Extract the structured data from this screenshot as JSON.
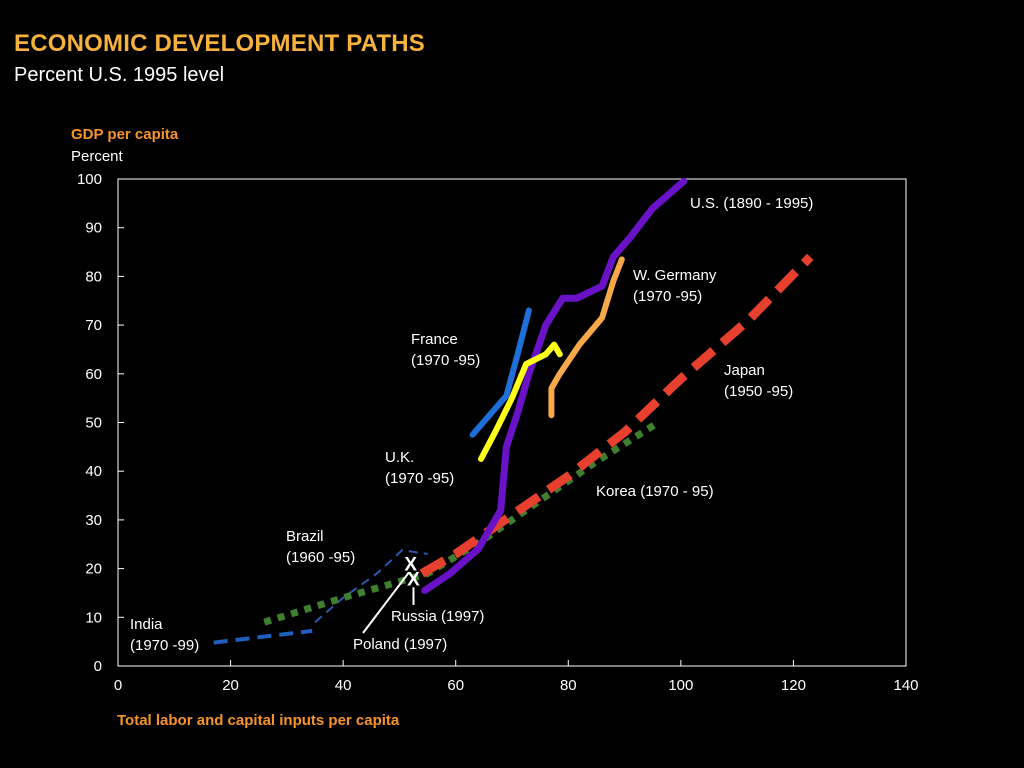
{
  "header": {
    "title": "ECONOMIC DEVELOPMENT PATHS",
    "subtitle": "Percent U.S. 1995 level"
  },
  "chart_data": {
    "type": "line",
    "title": "ECONOMIC DEVELOPMENT PATHS",
    "subtitle": "Percent U.S. 1995 level",
    "ylabel": "GDP per capita",
    "yunit": "Percent",
    "xlabel": "Total labor and capital inputs per capita",
    "xlim": [
      0,
      140
    ],
    "ylim": [
      0,
      100
    ],
    "x_ticks": [
      0,
      20,
      40,
      60,
      80,
      100,
      120,
      140
    ],
    "y_ticks": [
      0,
      10,
      20,
      30,
      40,
      50,
      60,
      70,
      80,
      90,
      100
    ],
    "grid": false,
    "series": [
      {
        "name": "India",
        "label_lines": [
          "India",
          "(1970 -99)"
        ],
        "color": "#1f5fc0",
        "style": "dashed",
        "points": [
          [
            17,
            4.8
          ],
          [
            34.5,
            7.2
          ]
        ]
      },
      {
        "name": "Brazil",
        "label_lines": [
          "Brazil",
          "(1960 -95)"
        ],
        "color": "#2a5ab0",
        "style": "thin-dashed",
        "points": [
          [
            35,
            9
          ],
          [
            40,
            14
          ],
          [
            46,
            19
          ],
          [
            50.5,
            23.8
          ],
          [
            55,
            23
          ]
        ]
      },
      {
        "name": "Korea",
        "label_lines": [
          "Korea (1970   - 95)"
        ],
        "color": "#3f7f2f",
        "style": "dotted",
        "points": [
          [
            26,
            9
          ],
          [
            40,
            14
          ],
          [
            55,
            19
          ],
          [
            65,
            26
          ],
          [
            75,
            34
          ],
          [
            85,
            42
          ],
          [
            96,
            50
          ]
        ]
      },
      {
        "name": "Japan",
        "label_lines": [
          "Japan",
          "(1950 -95)"
        ],
        "color": "#e8402f",
        "style": "dashed",
        "points": [
          [
            54,
            19
          ],
          [
            60,
            23
          ],
          [
            70,
            31
          ],
          [
            80,
            39
          ],
          [
            90,
            48
          ],
          [
            100,
            59
          ],
          [
            112,
            71
          ],
          [
            123,
            84
          ]
        ]
      },
      {
        "name": "U.S.",
        "label_lines": [
          "U.S. (1890  - 1995)"
        ],
        "color": "#6a12c8",
        "style": "solid",
        "points": [
          [
            54.5,
            15.5
          ],
          [
            59,
            19
          ],
          [
            64,
            24
          ],
          [
            66,
            28
          ],
          [
            68,
            32
          ],
          [
            69,
            45
          ],
          [
            71,
            52
          ],
          [
            73,
            60
          ],
          [
            76,
            70
          ],
          [
            79,
            75.5
          ],
          [
            81.5,
            75.5
          ],
          [
            86,
            78
          ],
          [
            88,
            84
          ],
          [
            91,
            88
          ],
          [
            95,
            94
          ],
          [
            98,
            97
          ],
          [
            100.5,
            99.5
          ]
        ]
      },
      {
        "name": "U.K.",
        "label_lines": [
          "U.K.",
          "(1970 -95)"
        ],
        "color": "#ffff1a",
        "style": "solid",
        "points": [
          [
            64.5,
            42.5
          ],
          [
            67,
            48
          ],
          [
            70,
            55
          ],
          [
            72.5,
            62
          ],
          [
            76,
            64
          ],
          [
            77.5,
            66
          ],
          [
            78.5,
            64
          ]
        ]
      },
      {
        "name": "France",
        "label_lines": [
          "France",
          "(1970 -95)"
        ],
        "color": "#1f6fd8",
        "style": "solid",
        "points": [
          [
            63,
            47.5
          ],
          [
            66,
            51.5
          ],
          [
            69,
            55.5
          ],
          [
            71,
            64
          ],
          [
            73,
            73
          ]
        ]
      },
      {
        "name": "W. Germany",
        "label_lines": [
          "W. Germany",
          "(1970 -95)"
        ],
        "color": "#f7a84a",
        "style": "solid",
        "points": [
          [
            77,
            51.5
          ],
          [
            77,
            57
          ],
          [
            78.5,
            60
          ],
          [
            82,
            66
          ],
          [
            86,
            71.5
          ],
          [
            88,
            79
          ],
          [
            89.5,
            83.5
          ]
        ]
      }
    ],
    "markers": [
      {
        "name": "Russia",
        "label": "Russia (1997)",
        "symbol": "X",
        "x": 52.5,
        "y": 18
      },
      {
        "name": "Poland",
        "label": "Poland (1997)",
        "symbol": "X",
        "x": 52,
        "y": 21
      }
    ]
  }
}
